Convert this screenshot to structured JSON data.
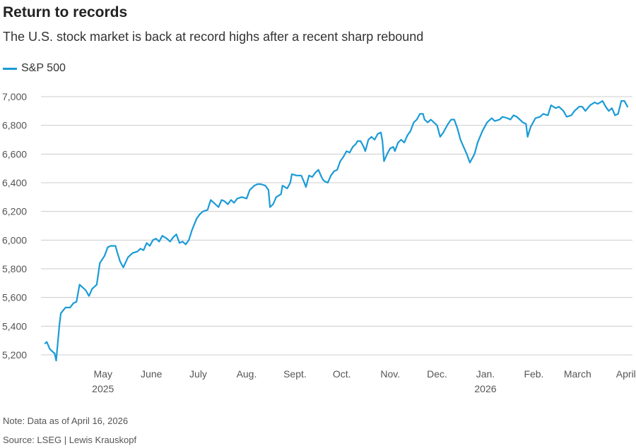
{
  "header": {
    "title": "Return to records",
    "subtitle": "The U.S. stock market is back at record highs after a recent sharp rebound"
  },
  "footer": {
    "note": "Note: Data as of April 16, 2026",
    "source": "Source: LSEG | Lewis Krauskopf"
  },
  "colors": {
    "series": "#1a9bd7",
    "grid": "#cccccc",
    "baseline": "#bbbbbb"
  },
  "chart_data": {
    "type": "line",
    "title": "Return to records",
    "xlabel": "",
    "ylabel": "",
    "ylim": [
      5200,
      7000
    ],
    "xlim": [
      "2025-04-08",
      "2026-04-16"
    ],
    "y_ticks": [
      5200,
      5400,
      5600,
      5800,
      6000,
      6200,
      6400,
      6600,
      6800,
      7000
    ],
    "y_tick_labels": [
      "5,200",
      "5,400",
      "5,600",
      "5,800",
      "6,000",
      "6,200",
      "6,400",
      "6,600",
      "6,800",
      "7,000"
    ],
    "x_ticks": [
      {
        "date": "2025-05-15",
        "label": "May",
        "sublabel": "2025"
      },
      {
        "date": "2025-06-15",
        "label": "June",
        "sublabel": ""
      },
      {
        "date": "2025-07-15",
        "label": "July",
        "sublabel": ""
      },
      {
        "date": "2025-08-15",
        "label": "Aug.",
        "sublabel": ""
      },
      {
        "date": "2025-09-15",
        "label": "Sept.",
        "sublabel": ""
      },
      {
        "date": "2025-10-15",
        "label": "Oct.",
        "sublabel": ""
      },
      {
        "date": "2025-11-15",
        "label": "Nov.",
        "sublabel": ""
      },
      {
        "date": "2025-12-15",
        "label": "Dec.",
        "sublabel": ""
      },
      {
        "date": "2026-01-15",
        "label": "Jan.",
        "sublabel": "2026"
      },
      {
        "date": "2026-02-15",
        "label": "Feb.",
        "sublabel": ""
      },
      {
        "date": "2026-03-15",
        "label": "March",
        "sublabel": ""
      },
      {
        "date": "2026-04-15",
        "label": "April",
        "sublabel": ""
      }
    ],
    "grid": true,
    "legend": "top-left",
    "series": [
      {
        "name": "S&P 500",
        "points": [
          [
            "2025-04-08",
            5280
          ],
          [
            "2025-04-09",
            5290
          ],
          [
            "2025-04-11",
            5240
          ],
          [
            "2025-04-14",
            5210
          ],
          [
            "2025-04-15",
            5160
          ],
          [
            "2025-04-17",
            5400
          ],
          [
            "2025-04-18",
            5490
          ],
          [
            "2025-04-21",
            5530
          ],
          [
            "2025-04-24",
            5530
          ],
          [
            "2025-04-26",
            5560
          ],
          [
            "2025-04-28",
            5570
          ],
          [
            "2025-04-30",
            5690
          ],
          [
            "2025-05-02",
            5670
          ],
          [
            "2025-05-04",
            5650
          ],
          [
            "2025-05-06",
            5610
          ],
          [
            "2025-05-08",
            5660
          ],
          [
            "2025-05-11",
            5690
          ],
          [
            "2025-05-13",
            5840
          ],
          [
            "2025-05-16",
            5890
          ],
          [
            "2025-05-18",
            5950
          ],
          [
            "2025-05-20",
            5960
          ],
          [
            "2025-05-23",
            5960
          ],
          [
            "2025-05-24",
            5920
          ],
          [
            "2025-05-26",
            5850
          ],
          [
            "2025-05-28",
            5810
          ],
          [
            "2025-05-31",
            5880
          ],
          [
            "2025-06-03",
            5910
          ],
          [
            "2025-06-06",
            5920
          ],
          [
            "2025-06-08",
            5940
          ],
          [
            "2025-06-10",
            5930
          ],
          [
            "2025-06-12",
            5980
          ],
          [
            "2025-06-14",
            5960
          ],
          [
            "2025-06-16",
            6000
          ],
          [
            "2025-06-18",
            6010
          ],
          [
            "2025-06-20",
            5990
          ],
          [
            "2025-06-22",
            6030
          ],
          [
            "2025-06-25",
            6010
          ],
          [
            "2025-06-27",
            5990
          ],
          [
            "2025-06-29",
            6020
          ],
          [
            "2025-07-01",
            6040
          ],
          [
            "2025-07-03",
            5980
          ],
          [
            "2025-07-05",
            5990
          ],
          [
            "2025-07-07",
            5970
          ],
          [
            "2025-07-09",
            6000
          ],
          [
            "2025-07-11",
            6070
          ],
          [
            "2025-07-14",
            6150
          ],
          [
            "2025-07-16",
            6180
          ],
          [
            "2025-07-18",
            6200
          ],
          [
            "2025-07-21",
            6210
          ],
          [
            "2025-07-23",
            6280
          ],
          [
            "2025-07-26",
            6250
          ],
          [
            "2025-07-28",
            6230
          ],
          [
            "2025-07-30",
            6280
          ],
          [
            "2025-08-01",
            6270
          ],
          [
            "2025-08-03",
            6250
          ],
          [
            "2025-08-05",
            6280
          ],
          [
            "2025-08-07",
            6260
          ],
          [
            "2025-08-09",
            6290
          ],
          [
            "2025-08-12",
            6300
          ],
          [
            "2025-08-15",
            6290
          ],
          [
            "2025-08-17",
            6350
          ],
          [
            "2025-08-20",
            6380
          ],
          [
            "2025-08-22",
            6390
          ],
          [
            "2025-08-24",
            6390
          ],
          [
            "2025-08-27",
            6380
          ],
          [
            "2025-08-29",
            6350
          ],
          [
            "2025-08-30",
            6230
          ],
          [
            "2025-09-01",
            6250
          ],
          [
            "2025-09-03",
            6300
          ],
          [
            "2025-09-06",
            6320
          ],
          [
            "2025-09-07",
            6380
          ],
          [
            "2025-09-10",
            6360
          ],
          [
            "2025-09-12",
            6400
          ],
          [
            "2025-09-13",
            6460
          ],
          [
            "2025-09-16",
            6450
          ],
          [
            "2025-09-19",
            6450
          ],
          [
            "2025-09-21",
            6400
          ],
          [
            "2025-09-22",
            6370
          ],
          [
            "2025-09-24",
            6450
          ],
          [
            "2025-09-26",
            6440
          ],
          [
            "2025-09-28",
            6470
          ],
          [
            "2025-09-30",
            6490
          ],
          [
            "2025-10-02",
            6440
          ],
          [
            "2025-10-03",
            6420
          ],
          [
            "2025-10-04",
            6410
          ],
          [
            "2025-10-06",
            6400
          ],
          [
            "2025-10-08",
            6450
          ],
          [
            "2025-10-10",
            6480
          ],
          [
            "2025-10-12",
            6490
          ],
          [
            "2025-10-14",
            6550
          ],
          [
            "2025-10-16",
            6580
          ],
          [
            "2025-10-18",
            6620
          ],
          [
            "2025-10-20",
            6610
          ],
          [
            "2025-10-22",
            6650
          ],
          [
            "2025-10-24",
            6670
          ],
          [
            "2025-10-25",
            6690
          ],
          [
            "2025-10-27",
            6690
          ],
          [
            "2025-10-29",
            6650
          ],
          [
            "2025-10-30",
            6620
          ],
          [
            "2025-11-01",
            6700
          ],
          [
            "2025-11-03",
            6720
          ],
          [
            "2025-11-05",
            6700
          ],
          [
            "2025-11-07",
            6740
          ],
          [
            "2025-11-09",
            6750
          ],
          [
            "2025-11-10",
            6690
          ],
          [
            "2025-11-11",
            6550
          ],
          [
            "2025-11-13",
            6600
          ],
          [
            "2025-11-15",
            6640
          ],
          [
            "2025-11-17",
            6650
          ],
          [
            "2025-11-18",
            6620
          ],
          [
            "2025-11-20",
            6680
          ],
          [
            "2025-11-22",
            6700
          ],
          [
            "2025-11-24",
            6680
          ],
          [
            "2025-11-26",
            6730
          ],
          [
            "2025-11-28",
            6760
          ],
          [
            "2025-11-30",
            6820
          ],
          [
            "2025-12-02",
            6840
          ],
          [
            "2025-12-04",
            6880
          ],
          [
            "2025-12-06",
            6880
          ],
          [
            "2025-12-07",
            6840
          ],
          [
            "2025-12-09",
            6820
          ],
          [
            "2025-12-11",
            6840
          ],
          [
            "2025-12-13",
            6820
          ],
          [
            "2025-12-15",
            6800
          ],
          [
            "2025-12-17",
            6720
          ],
          [
            "2025-12-19",
            6750
          ],
          [
            "2025-12-22",
            6810
          ],
          [
            "2025-12-24",
            6840
          ],
          [
            "2025-12-26",
            6840
          ],
          [
            "2025-12-28",
            6780
          ],
          [
            "2025-12-30",
            6700
          ],
          [
            "2026-01-01",
            6650
          ],
          [
            "2026-01-03",
            6600
          ],
          [
            "2026-01-05",
            6540
          ],
          [
            "2026-01-08",
            6600
          ],
          [
            "2026-01-10",
            6680
          ],
          [
            "2026-01-13",
            6760
          ],
          [
            "2026-01-16",
            6820
          ],
          [
            "2026-01-19",
            6850
          ],
          [
            "2026-01-21",
            6830
          ],
          [
            "2026-01-24",
            6840
          ],
          [
            "2026-01-26",
            6860
          ],
          [
            "2026-01-29",
            6850
          ],
          [
            "2026-01-31",
            6840
          ],
          [
            "2026-02-02",
            6870
          ],
          [
            "2026-02-04",
            6860
          ],
          [
            "2026-02-06",
            6840
          ],
          [
            "2026-02-08",
            6820
          ],
          [
            "2026-02-10",
            6810
          ],
          [
            "2026-02-11",
            6720
          ],
          [
            "2026-02-13",
            6790
          ],
          [
            "2026-02-16",
            6850
          ],
          [
            "2026-02-19",
            6860
          ],
          [
            "2026-02-21",
            6880
          ],
          [
            "2026-02-24",
            6870
          ],
          [
            "2026-02-26",
            6940
          ],
          [
            "2026-03-01",
            6920
          ],
          [
            "2026-03-03",
            6930
          ],
          [
            "2026-03-06",
            6900
          ],
          [
            "2026-03-08",
            6860
          ],
          [
            "2026-03-11",
            6870
          ],
          [
            "2026-03-13",
            6900
          ],
          [
            "2026-03-16",
            6930
          ],
          [
            "2026-03-18",
            6930
          ],
          [
            "2026-03-20",
            6900
          ],
          [
            "2026-03-23",
            6940
          ],
          [
            "2026-03-26",
            6960
          ],
          [
            "2026-03-28",
            6950
          ],
          [
            "2026-03-31",
            6970
          ],
          [
            "2026-04-02",
            6930
          ],
          [
            "2026-04-04",
            6900
          ],
          [
            "2026-04-06",
            6920
          ],
          [
            "2026-04-08",
            6870
          ],
          [
            "2026-04-10",
            6880
          ],
          [
            "2026-04-12",
            6970
          ],
          [
            "2026-04-14",
            6970
          ],
          [
            "2026-04-16",
            6930
          ]
        ]
      }
    ]
  }
}
